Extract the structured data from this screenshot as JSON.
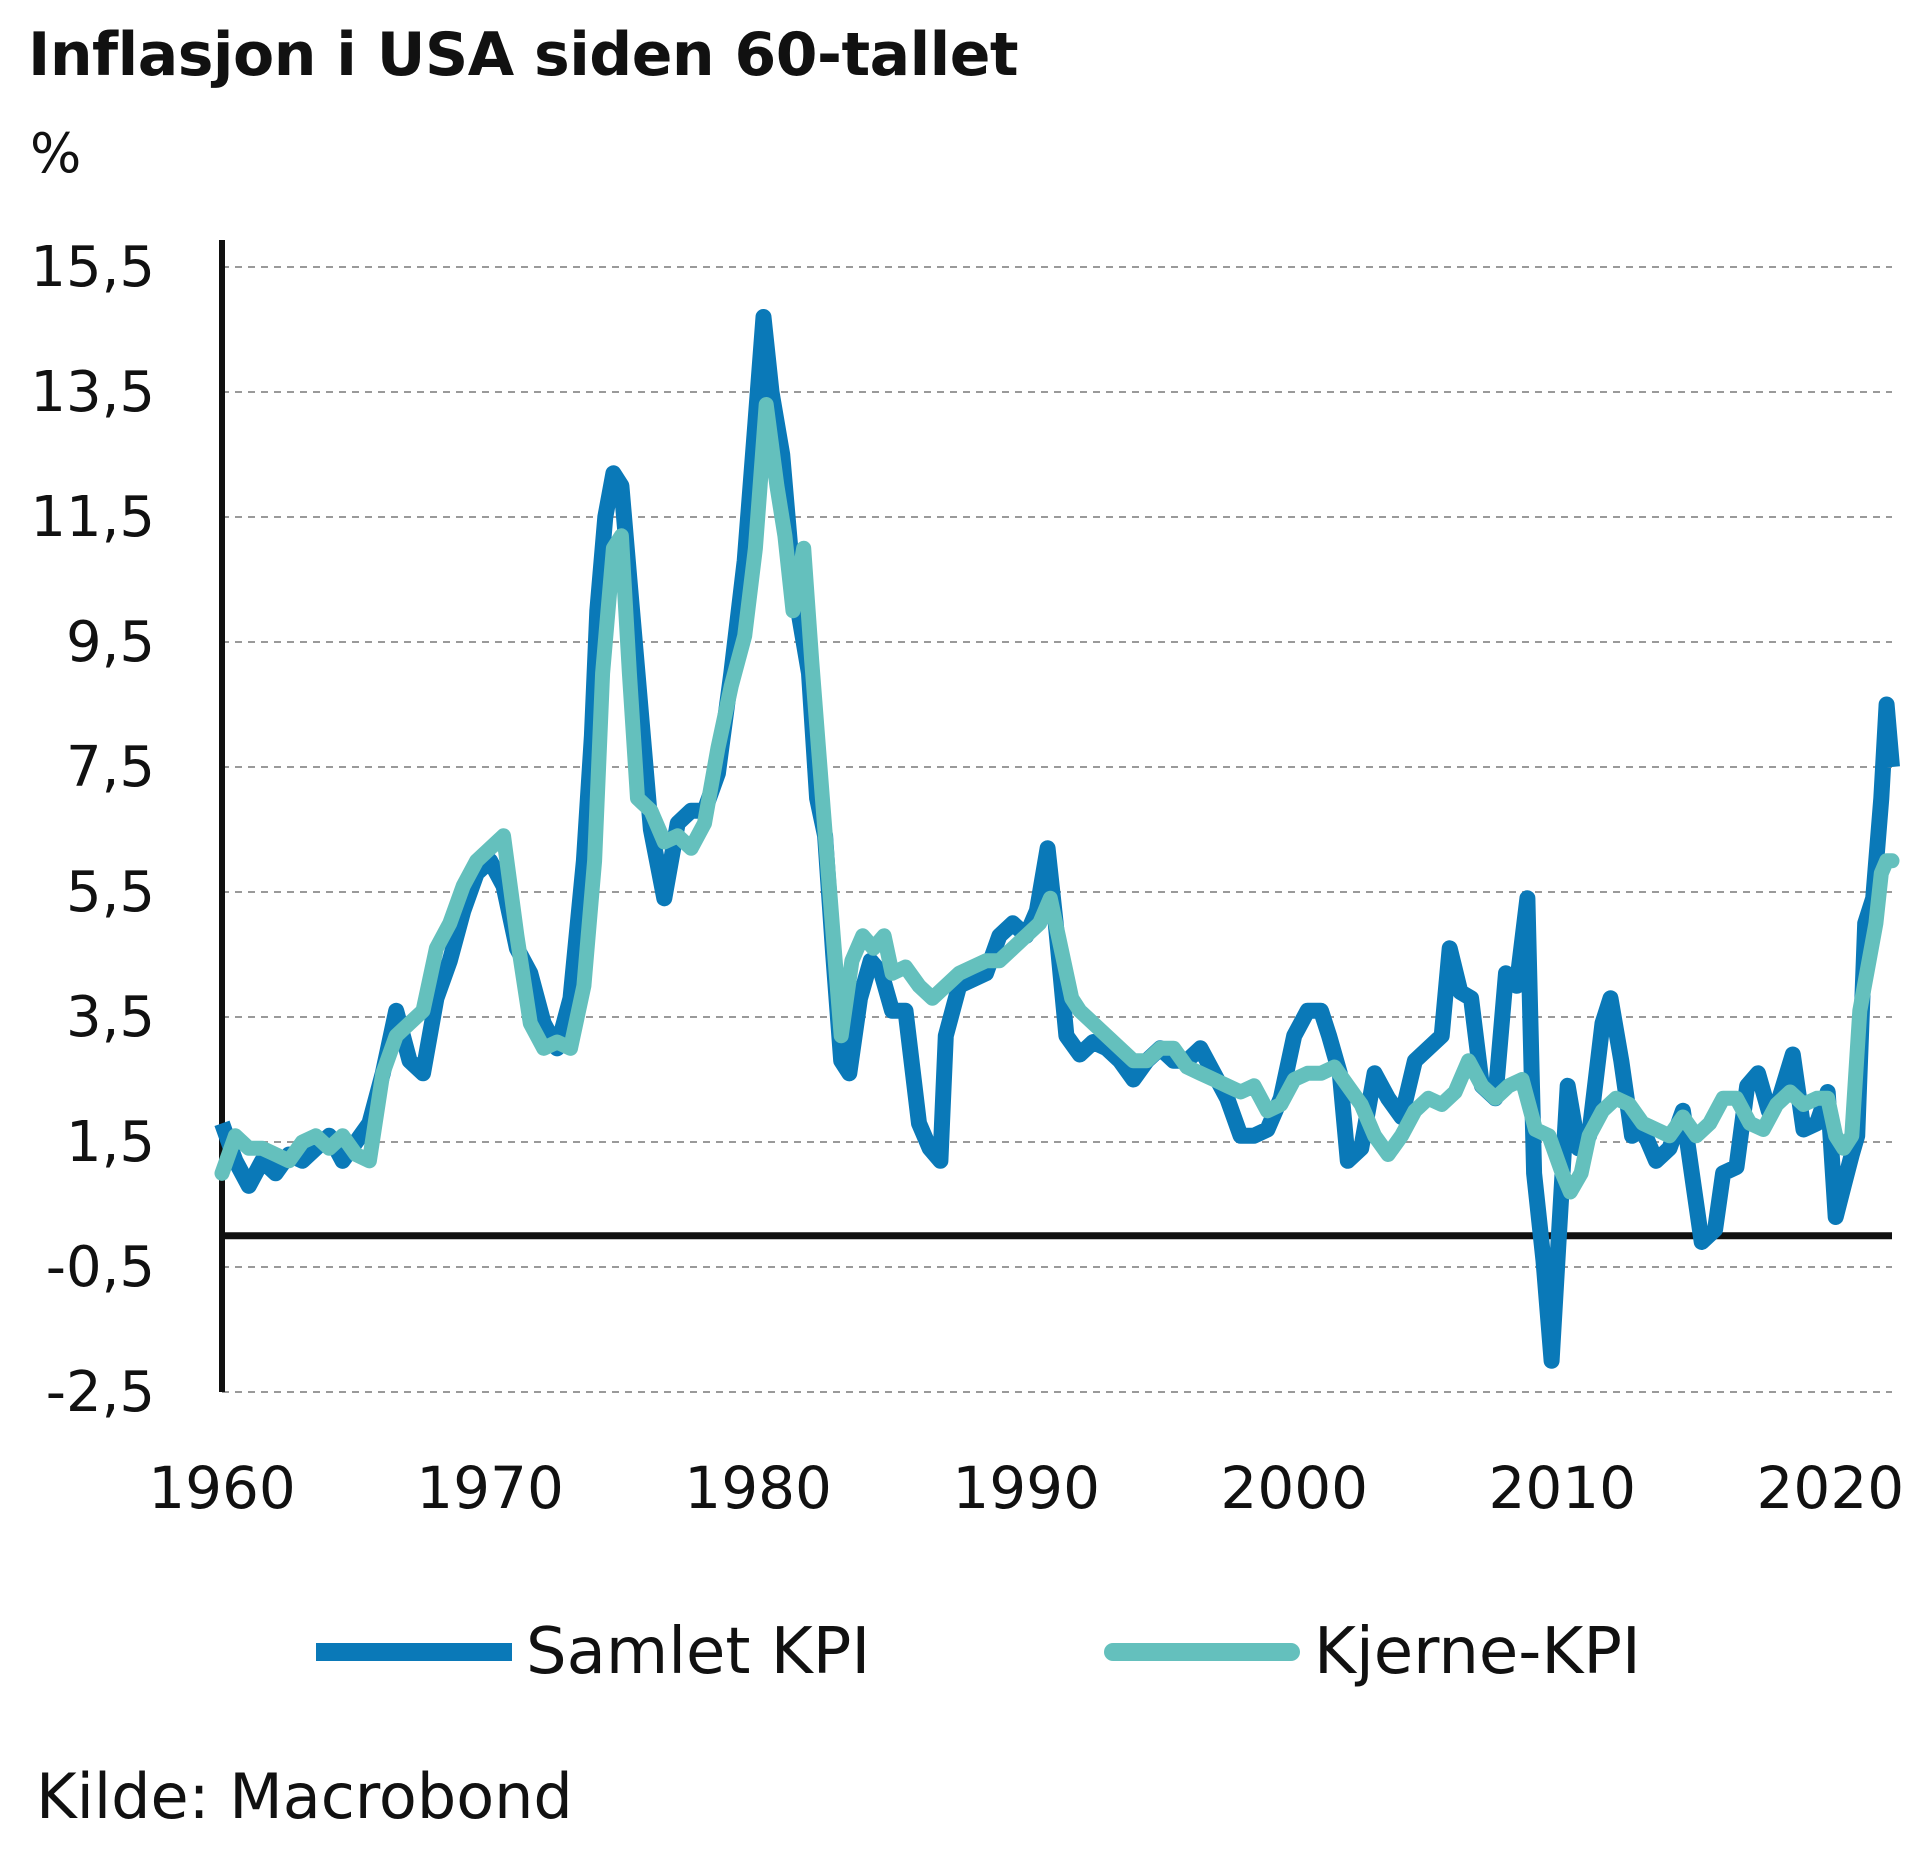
{
  "chart_data": {
    "type": "line",
    "title": "Inflasjon i USA siden 60-tallet",
    "ylabel": "%",
    "xlabel": "",
    "xlim": [
      1960,
      2022.3
    ],
    "ylim": [
      -2.5,
      15.5
    ],
    "yticks": [
      "15,5",
      "13,5",
      "11,5",
      "9,5",
      "7,5",
      "5,5",
      "3,5",
      "1,5",
      "-0,5",
      "-2,5"
    ],
    "ytick_values": [
      15.5,
      13.5,
      11.5,
      9.5,
      7.5,
      5.5,
      3.5,
      1.5,
      -0.5,
      -2.5
    ],
    "xticks": [
      "1960",
      "1970",
      "1980",
      "1990",
      "2000",
      "2010",
      "2020"
    ],
    "xtick_values": [
      1960,
      1970,
      1980,
      1990,
      2000,
      2010,
      2020
    ],
    "zero_line": 0,
    "grid": "horizontal dashed",
    "legend_position": "bottom",
    "source": "Kilde: Macrobond",
    "series": [
      {
        "name": "Samlet KPI",
        "color": "#0a79b8",
        "points": [
          [
            1960.0,
            1.8
          ],
          [
            1960.5,
            1.2
          ],
          [
            1961.0,
            0.8
          ],
          [
            1961.5,
            1.2
          ],
          [
            1962.0,
            1.0
          ],
          [
            1962.5,
            1.3
          ],
          [
            1963.0,
            1.2
          ],
          [
            1963.5,
            1.4
          ],
          [
            1964.0,
            1.6
          ],
          [
            1964.5,
            1.2
          ],
          [
            1965.0,
            1.5
          ],
          [
            1965.5,
            1.8
          ],
          [
            1966.0,
            2.6
          ],
          [
            1966.5,
            3.6
          ],
          [
            1967.0,
            2.8
          ],
          [
            1967.5,
            2.6
          ],
          [
            1968.0,
            3.8
          ],
          [
            1968.5,
            4.4
          ],
          [
            1969.0,
            5.2
          ],
          [
            1969.5,
            5.8
          ],
          [
            1970.0,
            6.0
          ],
          [
            1970.5,
            5.6
          ],
          [
            1971.0,
            4.6
          ],
          [
            1971.5,
            4.2
          ],
          [
            1972.0,
            3.4
          ],
          [
            1972.5,
            3.0
          ],
          [
            1973.0,
            3.8
          ],
          [
            1973.5,
            6.0
          ],
          [
            1973.8,
            8.0
          ],
          [
            1974.0,
            10.0
          ],
          [
            1974.3,
            11.5
          ],
          [
            1974.6,
            12.2
          ],
          [
            1974.9,
            12.0
          ],
          [
            1975.2,
            10.5
          ],
          [
            1975.5,
            9.0
          ],
          [
            1976.0,
            6.5
          ],
          [
            1976.5,
            5.4
          ],
          [
            1977.0,
            6.6
          ],
          [
            1977.5,
            6.8
          ],
          [
            1978.0,
            6.8
          ],
          [
            1978.5,
            7.4
          ],
          [
            1979.0,
            9.0
          ],
          [
            1979.5,
            10.8
          ],
          [
            1979.9,
            13.0
          ],
          [
            1980.2,
            14.7
          ],
          [
            1980.5,
            13.5
          ],
          [
            1980.9,
            12.5
          ],
          [
            1981.2,
            11.0
          ],
          [
            1981.5,
            10.0
          ],
          [
            1981.9,
            9.0
          ],
          [
            1982.2,
            7.0
          ],
          [
            1982.5,
            6.4
          ],
          [
            1982.8,
            4.5
          ],
          [
            1983.1,
            2.8
          ],
          [
            1983.4,
            2.6
          ],
          [
            1983.8,
            3.8
          ],
          [
            1984.2,
            4.4
          ],
          [
            1984.6,
            4.2
          ],
          [
            1985.0,
            3.6
          ],
          [
            1985.5,
            3.6
          ],
          [
            1986.0,
            1.8
          ],
          [
            1986.4,
            1.4
          ],
          [
            1986.8,
            1.2
          ],
          [
            1987.0,
            3.2
          ],
          [
            1987.5,
            4.0
          ],
          [
            1988.0,
            4.1
          ],
          [
            1988.5,
            4.2
          ],
          [
            1989.0,
            4.8
          ],
          [
            1989.5,
            5.0
          ],
          [
            1990.0,
            4.8
          ],
          [
            1990.4,
            5.2
          ],
          [
            1990.8,
            6.2
          ],
          [
            1991.1,
            5.0
          ],
          [
            1991.5,
            3.2
          ],
          [
            1992.0,
            2.9
          ],
          [
            1992.5,
            3.1
          ],
          [
            1993.0,
            3.0
          ],
          [
            1993.5,
            2.8
          ],
          [
            1994.0,
            2.5
          ],
          [
            1994.5,
            2.8
          ],
          [
            1995.0,
            3.0
          ],
          [
            1995.5,
            2.8
          ],
          [
            1996.0,
            2.8
          ],
          [
            1996.5,
            3.0
          ],
          [
            1997.0,
            2.6
          ],
          [
            1997.5,
            2.2
          ],
          [
            1998.0,
            1.6
          ],
          [
            1998.5,
            1.6
          ],
          [
            1999.0,
            1.7
          ],
          [
            1999.5,
            2.2
          ],
          [
            2000.0,
            3.2
          ],
          [
            2000.5,
            3.6
          ],
          [
            2001.0,
            3.6
          ],
          [
            2001.3,
            3.2
          ],
          [
            2001.7,
            2.6
          ],
          [
            2002.0,
            1.2
          ],
          [
            2002.5,
            1.4
          ],
          [
            2003.0,
            2.6
          ],
          [
            2003.5,
            2.2
          ],
          [
            2004.0,
            1.9
          ],
          [
            2004.5,
            2.8
          ],
          [
            2005.0,
            3.0
          ],
          [
            2005.5,
            3.2
          ],
          [
            2005.8,
            4.6
          ],
          [
            2006.2,
            3.9
          ],
          [
            2006.6,
            3.8
          ],
          [
            2007.0,
            2.4
          ],
          [
            2007.5,
            2.2
          ],
          [
            2007.9,
            4.2
          ],
          [
            2008.3,
            4.0
          ],
          [
            2008.7,
            5.4
          ],
          [
            2008.95,
            1.0
          ],
          [
            2009.3,
            -0.4
          ],
          [
            2009.6,
            -2.0
          ],
          [
            2009.9,
            0.2
          ],
          [
            2010.2,
            2.4
          ],
          [
            2010.6,
            1.4
          ],
          [
            2011.0,
            1.6
          ],
          [
            2011.5,
            3.4
          ],
          [
            2011.8,
            3.8
          ],
          [
            2012.2,
            2.8
          ],
          [
            2012.6,
            1.6
          ],
          [
            2013.0,
            1.7
          ],
          [
            2013.5,
            1.2
          ],
          [
            2014.0,
            1.4
          ],
          [
            2014.5,
            2.0
          ],
          [
            2014.9,
            0.8
          ],
          [
            2015.2,
            -0.1
          ],
          [
            2015.7,
            0.1
          ],
          [
            2016.0,
            1.0
          ],
          [
            2016.5,
            1.1
          ],
          [
            2016.9,
            2.4
          ],
          [
            2017.3,
            2.6
          ],
          [
            2017.7,
            2.0
          ],
          [
            2018.1,
            2.2
          ],
          [
            2018.6,
            2.9
          ],
          [
            2019.0,
            1.7
          ],
          [
            2019.5,
            1.8
          ],
          [
            2019.9,
            2.3
          ],
          [
            2020.2,
            0.3
          ],
          [
            2020.5,
            0.8
          ],
          [
            2020.8,
            1.3
          ],
          [
            2021.0,
            1.6
          ],
          [
            2021.3,
            5.0
          ],
          [
            2021.6,
            5.4
          ],
          [
            2021.9,
            7.0
          ],
          [
            2022.1,
            8.5
          ],
          [
            2022.3,
            7.5
          ]
        ]
      },
      {
        "name": "Kjerne-KPI",
        "color": "#64c0bd",
        "points": [
          [
            1960.0,
            1.0
          ],
          [
            1960.5,
            1.6
          ],
          [
            1961.0,
            1.4
          ],
          [
            1961.5,
            1.4
          ],
          [
            1962.0,
            1.3
          ],
          [
            1962.5,
            1.2
          ],
          [
            1963.0,
            1.5
          ],
          [
            1963.5,
            1.6
          ],
          [
            1964.0,
            1.4
          ],
          [
            1964.5,
            1.6
          ],
          [
            1965.0,
            1.3
          ],
          [
            1965.5,
            1.2
          ],
          [
            1966.0,
            2.6
          ],
          [
            1966.5,
            3.2
          ],
          [
            1967.0,
            3.4
          ],
          [
            1967.5,
            3.6
          ],
          [
            1968.0,
            4.6
          ],
          [
            1968.5,
            5.0
          ],
          [
            1969.0,
            5.6
          ],
          [
            1969.5,
            6.0
          ],
          [
            1970.0,
            6.2
          ],
          [
            1970.5,
            6.4
          ],
          [
            1971.0,
            4.8
          ],
          [
            1971.5,
            3.4
          ],
          [
            1972.0,
            3.0
          ],
          [
            1972.5,
            3.1
          ],
          [
            1973.0,
            3.0
          ],
          [
            1973.5,
            4.0
          ],
          [
            1973.9,
            6.0
          ],
          [
            1974.2,
            9.0
          ],
          [
            1974.6,
            11.0
          ],
          [
            1974.9,
            11.2
          ],
          [
            1975.2,
            9.0
          ],
          [
            1975.5,
            7.0
          ],
          [
            1976.0,
            6.8
          ],
          [
            1976.5,
            6.3
          ],
          [
            1977.0,
            6.4
          ],
          [
            1977.5,
            6.2
          ],
          [
            1978.0,
            6.6
          ],
          [
            1978.5,
            7.8
          ],
          [
            1979.0,
            8.8
          ],
          [
            1979.5,
            9.6
          ],
          [
            1979.9,
            11.0
          ],
          [
            1980.3,
            13.3
          ],
          [
            1980.7,
            12.0
          ],
          [
            1981.0,
            11.2
          ],
          [
            1981.3,
            10.0
          ],
          [
            1981.7,
            11.0
          ],
          [
            1982.0,
            9.2
          ],
          [
            1982.4,
            7.0
          ],
          [
            1982.8,
            4.8
          ],
          [
            1983.1,
            3.2
          ],
          [
            1983.5,
            4.4
          ],
          [
            1983.9,
            4.8
          ],
          [
            1984.3,
            4.6
          ],
          [
            1984.7,
            4.8
          ],
          [
            1985.0,
            4.2
          ],
          [
            1985.5,
            4.3
          ],
          [
            1986.0,
            4.0
          ],
          [
            1986.5,
            3.8
          ],
          [
            1987.0,
            4.0
          ],
          [
            1987.5,
            4.2
          ],
          [
            1988.0,
            4.3
          ],
          [
            1988.5,
            4.4
          ],
          [
            1989.0,
            4.4
          ],
          [
            1989.5,
            4.6
          ],
          [
            1990.0,
            4.8
          ],
          [
            1990.5,
            5.0
          ],
          [
            1990.9,
            5.4
          ],
          [
            1991.3,
            4.6
          ],
          [
            1991.7,
            3.8
          ],
          [
            1992.0,
            3.6
          ],
          [
            1992.5,
            3.4
          ],
          [
            1993.0,
            3.2
          ],
          [
            1993.5,
            3.0
          ],
          [
            1994.0,
            2.8
          ],
          [
            1994.5,
            2.8
          ],
          [
            1995.0,
            3.0
          ],
          [
            1995.5,
            3.0
          ],
          [
            1996.0,
            2.7
          ],
          [
            1996.5,
            2.6
          ],
          [
            1997.0,
            2.5
          ],
          [
            1997.5,
            2.4
          ],
          [
            1998.0,
            2.3
          ],
          [
            1998.5,
            2.4
          ],
          [
            1999.0,
            2.0
          ],
          [
            1999.5,
            2.1
          ],
          [
            2000.0,
            2.5
          ],
          [
            2000.5,
            2.6
          ],
          [
            2001.0,
            2.6
          ],
          [
            2001.5,
            2.7
          ],
          [
            2002.0,
            2.4
          ],
          [
            2002.5,
            2.1
          ],
          [
            2003.0,
            1.6
          ],
          [
            2003.5,
            1.3
          ],
          [
            2004.0,
            1.6
          ],
          [
            2004.5,
            2.0
          ],
          [
            2005.0,
            2.2
          ],
          [
            2005.5,
            2.1
          ],
          [
            2006.0,
            2.3
          ],
          [
            2006.5,
            2.8
          ],
          [
            2007.0,
            2.4
          ],
          [
            2007.5,
            2.2
          ],
          [
            2008.0,
            2.4
          ],
          [
            2008.5,
            2.5
          ],
          [
            2009.0,
            1.7
          ],
          [
            2009.5,
            1.6
          ],
          [
            2010.0,
            1.0
          ],
          [
            2010.3,
            0.7
          ],
          [
            2010.7,
            1.0
          ],
          [
            2011.0,
            1.6
          ],
          [
            2011.5,
            2.0
          ],
          [
            2012.0,
            2.2
          ],
          [
            2012.5,
            2.1
          ],
          [
            2013.0,
            1.8
          ],
          [
            2013.5,
            1.7
          ],
          [
            2014.0,
            1.6
          ],
          [
            2014.5,
            1.9
          ],
          [
            2015.0,
            1.6
          ],
          [
            2015.5,
            1.8
          ],
          [
            2016.0,
            2.2
          ],
          [
            2016.5,
            2.2
          ],
          [
            2017.0,
            1.8
          ],
          [
            2017.5,
            1.7
          ],
          [
            2018.0,
            2.1
          ],
          [
            2018.5,
            2.3
          ],
          [
            2019.0,
            2.1
          ],
          [
            2019.5,
            2.2
          ],
          [
            2019.9,
            2.2
          ],
          [
            2020.2,
            1.6
          ],
          [
            2020.5,
            1.4
          ],
          [
            2020.8,
            1.6
          ],
          [
            2021.1,
            3.6
          ],
          [
            2021.4,
            4.3
          ],
          [
            2021.7,
            5.0
          ],
          [
            2021.9,
            5.8
          ],
          [
            2022.1,
            6.0
          ],
          [
            2022.3,
            6.0
          ]
        ]
      }
    ]
  }
}
